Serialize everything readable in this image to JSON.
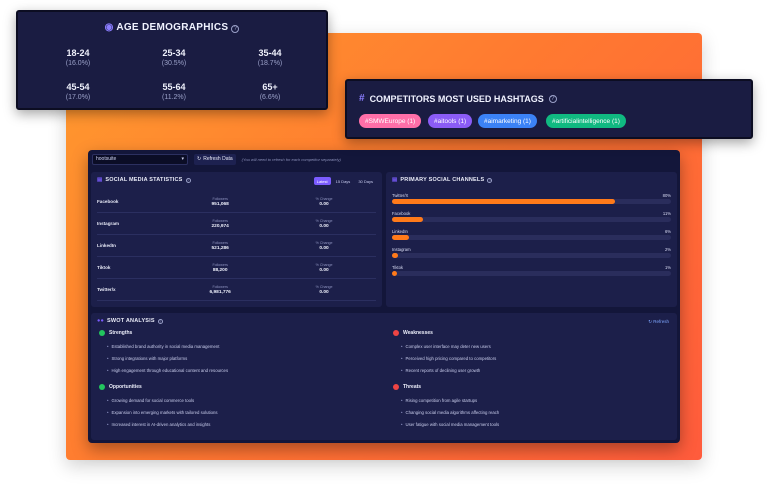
{
  "age_demographics": {
    "title": "AGE DEMOGRAPHICS",
    "groups": [
      {
        "range": "18-24",
        "pct": "(16.0%)"
      },
      {
        "range": "25-34",
        "pct": "(30.5%)"
      },
      {
        "range": "35-44",
        "pct": "(18.7%)"
      },
      {
        "range": "45-54",
        "pct": "(17.0%)"
      },
      {
        "range": "55-64",
        "pct": "(11.2%)"
      },
      {
        "range": "65+",
        "pct": "(6.6%)"
      }
    ]
  },
  "hashtags": {
    "title": "COMPETITORS MOST USED HASHTAGS",
    "tags": [
      {
        "label": "#SMWEurope (1)",
        "color": "#ff6fa8"
      },
      {
        "label": "#aitools (1)",
        "color": "#8b5cf6"
      },
      {
        "label": "#aimarketing (1)",
        "color": "#3b82f6"
      },
      {
        "label": "#artificialintelligence (1)",
        "color": "#10b981"
      }
    ]
  },
  "toolbar": {
    "competitor_value": "hootsuite",
    "refresh_label": "Refresh Data",
    "hint": "(You will need to refresh for each competitor separately)"
  },
  "social_stats": {
    "title": "SOCIAL MEDIA STATISTICS",
    "tabs": [
      "Latest",
      "15 Days",
      "30 Days"
    ],
    "followers_label": "Followers",
    "change_label": "% Change",
    "rows": [
      {
        "name": "Facebook",
        "followers": "951,068",
        "change": "0.00"
      },
      {
        "name": "Instagram",
        "followers": "220,974",
        "change": "0.00"
      },
      {
        "name": "LinkedIn",
        "followers": "521,286",
        "change": "0.00"
      },
      {
        "name": "Tiktok",
        "followers": "88,200",
        "change": "0.00"
      },
      {
        "name": "Twitter/x",
        "followers": "6,981,776",
        "change": "0.00"
      }
    ]
  },
  "channels": {
    "title": "PRIMARY SOCIAL CHANNELS",
    "items": [
      {
        "name": "Twitter/X",
        "pct_label": "80%",
        "pct": 80
      },
      {
        "name": "Facebook",
        "pct_label": "11%",
        "pct": 11
      },
      {
        "name": "LinkedIn",
        "pct_label": "6%",
        "pct": 6
      },
      {
        "name": "Instagram",
        "pct_label": "2%",
        "pct": 2
      },
      {
        "name": "Tiktok",
        "pct_label": "1%",
        "pct": 1
      }
    ]
  },
  "swot": {
    "title": "SWOT ANALYSIS",
    "refresh_label": "Refresh",
    "strengths": {
      "label": "Strengths",
      "color": "#22c55e",
      "items": [
        "Established brand authority in social media management",
        "Strong integrations with major platforms",
        "High engagement through educational content and resources"
      ]
    },
    "weaknesses": {
      "label": "Weaknesses",
      "color": "#ef4444",
      "items": [
        "Complex user interface may deter new users",
        "Perceived high pricing compared to competitors",
        "Recent reports of declining user growth"
      ]
    },
    "opportunities": {
      "label": "Opportunities",
      "color": "#22c55e",
      "items": [
        "Growing demand for social commerce tools",
        "Expansion into emerging markets with tailored solutions",
        "Increased interest in AI-driven analytics and insights"
      ]
    },
    "threats": {
      "label": "Threats",
      "color": "#ef4444",
      "items": [
        "Rising competition from agile startups",
        "Changing social media algorithms affecting reach",
        "User fatigue with social media management tools"
      ]
    }
  },
  "colors": {
    "accent": "#7b5cff",
    "bar": "#ff7a1a",
    "background_gradient": "#ff7a30"
  }
}
